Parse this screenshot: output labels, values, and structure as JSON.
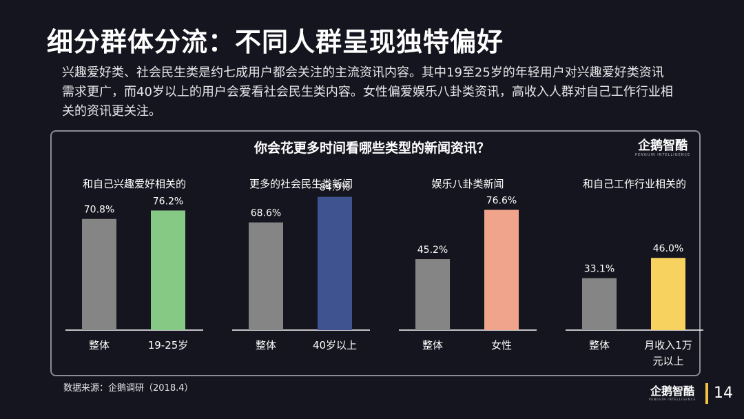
{
  "page": {
    "title": "细分群体分流：不同人群呈现独特偏好",
    "description": "兴趣爱好类、社会民生类是约七成用户都会关注的主流资讯内容。其中19至25岁的年轻用户对兴趣爱好类资讯需求更广，而40岁以上的用户会爱看社会民生类内容。女性偏爱娱乐八卦类资讯，高收入人群对自己工作行业相关的资讯更关注。",
    "source": "数据来源：企鹅调研（2018.4）",
    "page_number": "14",
    "logo_text": "企鹅智酷",
    "logo_subtext": "PENGUIN INTELLIGENCE"
  },
  "chart_data": {
    "type": "bar",
    "title": "你会花更多时间看哪些类型的新闻资讯？",
    "unit": "%",
    "ylim": [
      0,
      100
    ],
    "groups": [
      {
        "label": "和自己兴趣爱好相关的",
        "bars": [
          {
            "label": "整体",
            "value": 70.8,
            "value_label": "70.8%",
            "color": "#858585"
          },
          {
            "label": "19-25岁",
            "value": 76.2,
            "value_label": "76.2%",
            "color": "#86c985"
          }
        ]
      },
      {
        "label": "更多的社会民生类新闻",
        "bars": [
          {
            "label": "整体",
            "value": 68.6,
            "value_label": "68.6%",
            "color": "#858585"
          },
          {
            "label": "40岁以上",
            "value": 84.9,
            "value_label": "84.9%",
            "color": "#3f5390"
          }
        ]
      },
      {
        "label": "娱乐八卦类新闻",
        "bars": [
          {
            "label": "整体",
            "value": 45.2,
            "value_label": "45.2%",
            "color": "#858585"
          },
          {
            "label": "女性",
            "value": 76.6,
            "value_label": "76.6%",
            "color": "#f0a48c"
          }
        ]
      },
      {
        "label": "和自己工作行业相关的",
        "bars": [
          {
            "label": "整体",
            "value": 33.1,
            "value_label": "33.1%",
            "color": "#858585"
          },
          {
            "label": "月收入1万元以上",
            "label_lines": [
              "月收入1万",
              "元以上"
            ],
            "value": 46.0,
            "value_label": "46.0%",
            "color": "#f7d25e"
          }
        ]
      }
    ]
  }
}
